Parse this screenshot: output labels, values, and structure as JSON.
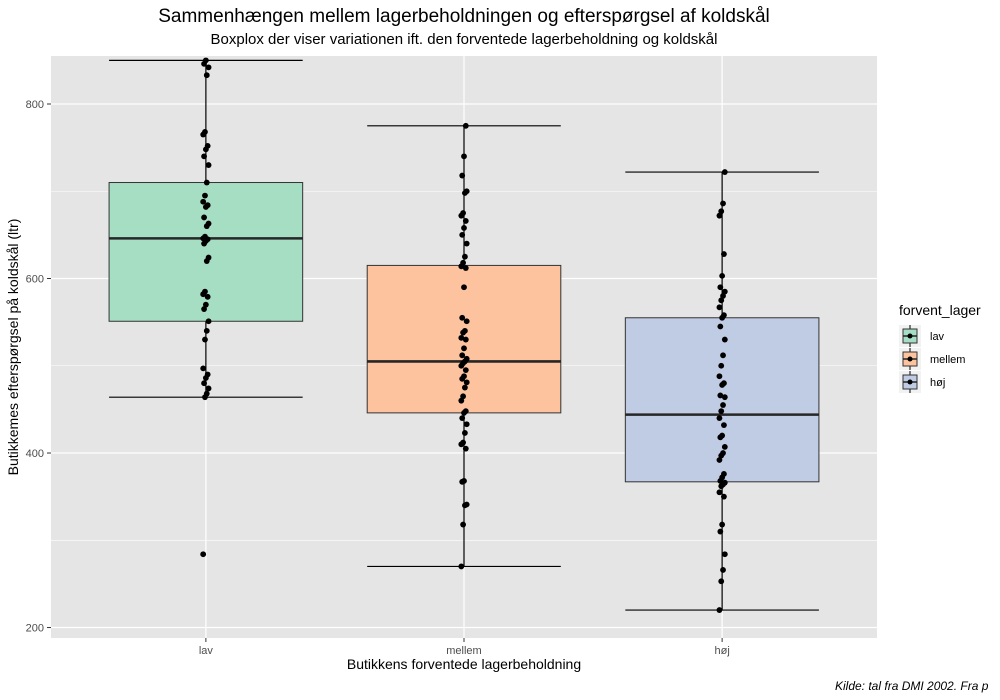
{
  "chart_data": {
    "type": "boxplot",
    "title": "Sammenhængen mellem lagerbeholdningen og efterspørgsel af koldskål",
    "subtitle": "Boxplox der viser variationen ift. den forventede lagerbeholdning og koldskål",
    "xlabel": "Butikkens forventede lagerbeholdning",
    "ylabel": "Butikkemes efterspørgsel på koldskål (ltr)",
    "caption": "Kilde: tal fra DMI 2002. Fra p",
    "ylim": [
      188,
      855
    ],
    "yticks": [
      200,
      400,
      600,
      800
    ],
    "grid": true,
    "legend": {
      "title": "forvent_lager",
      "position": "right",
      "entries": [
        {
          "label": "lav",
          "color": "#a6dec4"
        },
        {
          "label": "mellem",
          "color": "#fcc39e"
        },
        {
          "label": "høj",
          "color": "#c0cbe4"
        }
      ]
    },
    "categories": [
      "lav",
      "mellem",
      "høj"
    ],
    "series": [
      {
        "category": "lav",
        "color": "#a6dec4",
        "whisker_low": 464,
        "q1": 551,
        "median": 646,
        "q3": 710,
        "whisker_high": 850,
        "points": [
          284,
          464,
          468,
          474,
          480,
          486,
          490,
          497,
          530,
          540,
          551,
          565,
          570,
          579,
          582,
          585,
          620,
          624,
          640,
          643,
          645,
          646,
          648,
          660,
          663,
          670,
          682,
          684,
          688,
          695,
          710,
          730,
          740,
          748,
          752,
          765,
          768,
          833,
          842,
          846,
          850
        ]
      },
      {
        "category": "mellem",
        "color": "#fcc39e",
        "whisker_low": 270,
        "q1": 446,
        "median": 505,
        "q3": 615,
        "whisker_high": 775,
        "points": [
          270,
          318,
          340,
          341,
          367,
          368,
          405,
          410,
          412,
          423,
          433,
          440,
          446,
          448,
          460,
          465,
          475,
          481,
          485,
          488,
          495,
          500,
          503,
          505,
          508,
          512,
          520,
          530,
          532,
          538,
          540,
          551,
          555,
          590,
          612,
          614,
          618,
          625,
          640,
          650,
          658,
          666,
          672,
          675,
          698,
          700,
          718,
          740,
          775
        ]
      },
      {
        "category": "høj",
        "color": "#c0cbe4",
        "whisker_low": 220,
        "q1": 367,
        "median": 444,
        "q3": 555,
        "whisker_high": 722,
        "points": [
          220,
          253,
          266,
          284,
          310,
          318,
          350,
          355,
          362,
          364,
          366,
          368,
          372,
          376,
          392,
          397,
          400,
          407,
          418,
          420,
          432,
          440,
          448,
          455,
          464,
          466,
          478,
          480,
          488,
          500,
          512,
          530,
          545,
          555,
          558,
          567,
          575,
          580,
          585,
          590,
          603,
          628,
          672,
          677,
          686,
          722
        ]
      }
    ]
  }
}
